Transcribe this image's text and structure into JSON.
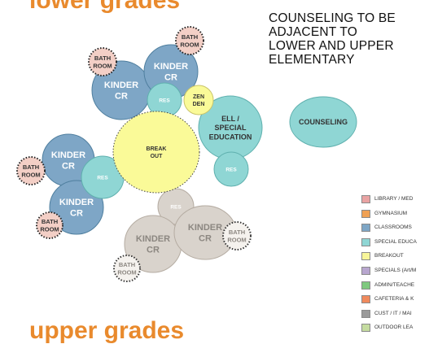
{
  "header_top": "lower grades",
  "header_bottom": "upper grades",
  "note": {
    "lines": [
      "COUNSELING TO BE",
      "ADJACENT TO",
      "LOWER AND UPPER",
      "ELEMENTARY"
    ]
  },
  "diagram": {
    "labels": {
      "bath_1": [
        "BATH",
        "ROOM"
      ],
      "bath_2": [
        "BATH",
        "ROOM"
      ],
      "kinder_1": [
        "KINDER",
        "CR"
      ],
      "kinder_2": [
        "KINDER",
        "CR"
      ],
      "res_1": "RES",
      "zen_den": [
        "ZEN",
        "DEN"
      ],
      "ell_sped": [
        "ELL /",
        "SPECIAL",
        "EDUCATION"
      ],
      "counseling": "COUNSELING",
      "breakout": [
        "BREAK",
        "OUT"
      ],
      "res_2": "RES",
      "bath_3": [
        "BATH",
        "ROOM"
      ],
      "kinder_3": [
        "KINDER",
        "CR"
      ],
      "res_3": "RES",
      "kinder_4": [
        "KINDER",
        "CR"
      ],
      "bath_4": [
        "BATH",
        "ROOM"
      ],
      "res_4": "RES",
      "kinder_5": [
        "KINDER",
        "CR"
      ],
      "kinder_6": [
        "KINDER",
        "CR"
      ],
      "bath_5": [
        "BATH",
        "ROOM"
      ],
      "bath_6": [
        "BATH",
        "ROOM"
      ]
    },
    "colors": {
      "classroom_fill": "#7ea6c6",
      "classroom_stroke": "#4f7f9f",
      "res_fill": "#8fd6d4",
      "res_stroke": "#5fb0ae",
      "breakout_fill": "#fafa98",
      "bath_fill": "#f3cfc6",
      "gray_fill": "#d9d3cc",
      "gray_stroke": "#b5aca2",
      "white_text": "#ffffff",
      "dark_text": "#333333",
      "gray_text": "#8c8781"
    }
  },
  "legend": [
    {
      "label": "LIBRARY / MED",
      "color": "#e9a3a3"
    },
    {
      "label": "GYMNASIUM",
      "color": "#f0a154"
    },
    {
      "label": "CLASSROOMS",
      "color": "#7ea6c6"
    },
    {
      "label": "SPECIAL EDUCA",
      "color": "#8fd6d4"
    },
    {
      "label": "BREAKOUT",
      "color": "#f8f69a"
    },
    {
      "label": "SPECIALS (Art/M",
      "color": "#b8a6cf"
    },
    {
      "label": "ADMIN/TEACHE",
      "color": "#7fc97f"
    },
    {
      "label": "CAFETERIA & K",
      "color": "#f08a5d"
    },
    {
      "label": "CUST / IT / MAI",
      "color": "#9a9a9a"
    },
    {
      "label": "OUTDOOR LEA",
      "color": "#c5dca0"
    }
  ]
}
